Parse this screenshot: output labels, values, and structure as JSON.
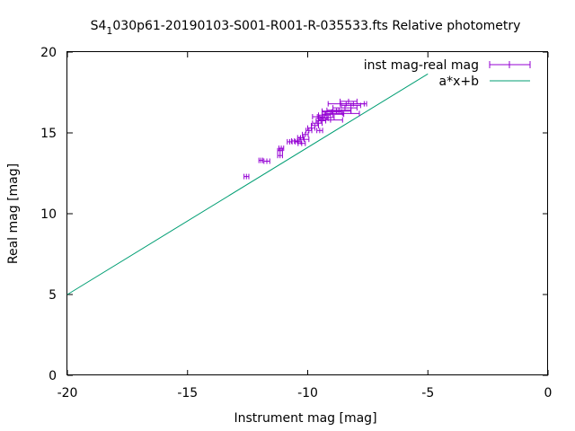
{
  "chart_data": {
    "type": "scatter",
    "title": {
      "prefix": "S4",
      "subscript": "1",
      "suffix": "030p61-20190103-S001-R001-R-035533.fts Relative photometry"
    },
    "xlabel": "Instrument mag [mag]",
    "ylabel": "Real mag [mag]",
    "xlim": [
      -20,
      0
    ],
    "ylim": [
      0,
      20
    ],
    "xticks": [
      -20,
      -15,
      -10,
      -5,
      0
    ],
    "yticks": [
      0,
      5,
      10,
      15,
      20
    ],
    "grid": false,
    "legend_position": "top-right",
    "series": [
      {
        "name": "inst mag-real mag",
        "kind": "errorbars",
        "color": "#9400d3",
        "points": [
          {
            "x": -12.55,
            "y": 12.3,
            "xerr": 0.1
          },
          {
            "x": -11.95,
            "y": 13.3,
            "xerr": 0.08
          },
          {
            "x": -11.7,
            "y": 13.25,
            "xerr": 0.12
          },
          {
            "x": -11.15,
            "y": 13.9,
            "xerr": 0.1
          },
          {
            "x": -11.1,
            "y": 14.05,
            "xerr": 0.1
          },
          {
            "x": -11.15,
            "y": 13.6,
            "xerr": 0.1
          },
          {
            "x": -10.75,
            "y": 14.45,
            "xerr": 0.1
          },
          {
            "x": -10.55,
            "y": 14.5,
            "xerr": 0.12
          },
          {
            "x": -10.4,
            "y": 14.45,
            "xerr": 0.12
          },
          {
            "x": -10.3,
            "y": 14.7,
            "xerr": 0.12
          },
          {
            "x": -10.25,
            "y": 14.35,
            "xerr": 0.15
          },
          {
            "x": -10.15,
            "y": 14.6,
            "xerr": 0.2
          },
          {
            "x": -10.1,
            "y": 14.9,
            "xerr": 0.12
          },
          {
            "x": -9.95,
            "y": 15.15,
            "xerr": 0.12
          },
          {
            "x": -9.85,
            "y": 15.3,
            "xerr": 0.15
          },
          {
            "x": -9.7,
            "y": 15.45,
            "xerr": 0.15
          },
          {
            "x": -9.6,
            "y": 15.6,
            "xerr": 0.2
          },
          {
            "x": -9.5,
            "y": 15.15,
            "xerr": 0.12
          },
          {
            "x": -9.45,
            "y": 15.75,
            "xerr": 0.2
          },
          {
            "x": -9.35,
            "y": 15.9,
            "xerr": 0.2
          },
          {
            "x": -9.2,
            "y": 15.95,
            "xerr": 0.3
          },
          {
            "x": -9.05,
            "y": 15.8,
            "xerr": 0.5
          },
          {
            "x": -8.95,
            "y": 16.15,
            "xerr": 0.45
          },
          {
            "x": -8.8,
            "y": 16.35,
            "xerr": 0.6
          },
          {
            "x": -8.7,
            "y": 16.4,
            "xerr": 0.5
          },
          {
            "x": -8.55,
            "y": 16.2,
            "xerr": 0.7
          },
          {
            "x": -8.45,
            "y": 16.55,
            "xerr": 0.5
          },
          {
            "x": -8.4,
            "y": 16.8,
            "xerr": 0.75
          },
          {
            "x": -8.3,
            "y": 16.95,
            "xerr": 0.35
          },
          {
            "x": -8.2,
            "y": 16.7,
            "xerr": 0.4
          },
          {
            "x": -8.1,
            "y": 16.8,
            "xerr": 0.55
          },
          {
            "x": -9.0,
            "y": 16.3,
            "xerr": 0.4
          },
          {
            "x": -9.3,
            "y": 16.1,
            "xerr": 0.25
          },
          {
            "x": -9.6,
            "y": 16.0,
            "xerr": 0.2
          }
        ]
      },
      {
        "name": "a*x+b",
        "kind": "line",
        "color": "#009e73",
        "slope": 0.91,
        "intercept": 23.2,
        "x_range": [
          -20,
          -5.0
        ]
      }
    ]
  }
}
